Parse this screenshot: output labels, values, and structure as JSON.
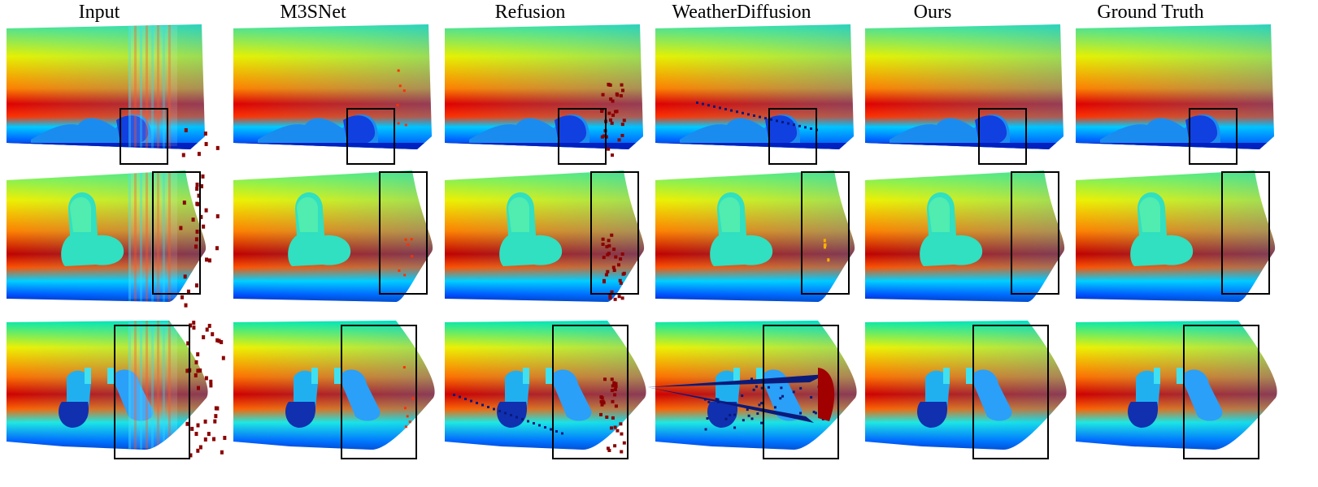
{
  "figure": {
    "columns": [
      {
        "key": "input",
        "title": "Input",
        "noise": "input"
      },
      {
        "key": "m3snet",
        "title": "M3SNet",
        "noise": "minor"
      },
      {
        "key": "refusion",
        "title": "Refusion",
        "noise": "refusion"
      },
      {
        "key": "weatherdiffusion",
        "title": "WeatherDiffusion",
        "noise": "wdiff"
      },
      {
        "key": "ours",
        "title": "Ours",
        "noise": "clean"
      },
      {
        "key": "ground_truth",
        "title": "Ground Truth",
        "noise": "clean"
      }
    ],
    "rows": 3,
    "colormap": "jet",
    "colors": {
      "jet": [
        "#00007f",
        "#0000ff",
        "#007fff",
        "#00ffff",
        "#7fff7f",
        "#ffff00",
        "#ff7f00",
        "#ff0000",
        "#7f0000"
      ],
      "box": "#000000",
      "noise_red": "#8b0000",
      "noise_blue": "#0a1a7a"
    }
  }
}
